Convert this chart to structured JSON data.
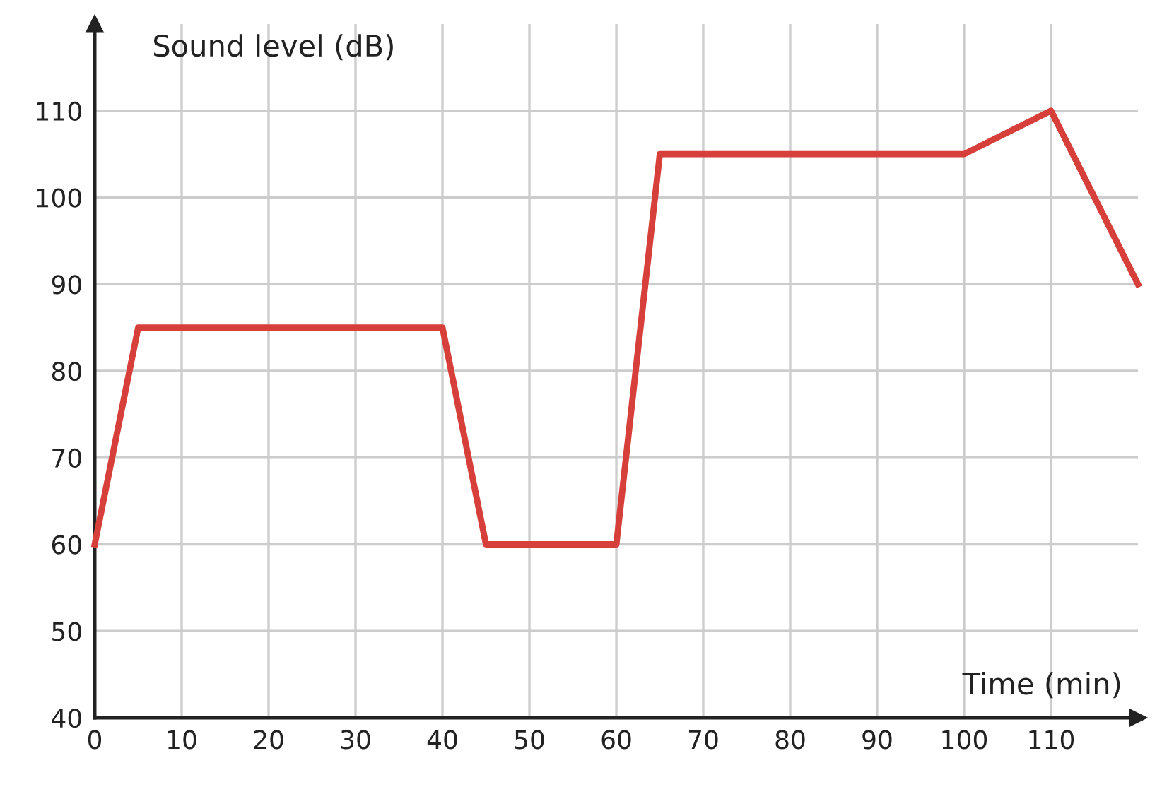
{
  "chart_data": {
    "type": "line",
    "xlabel": "Time (min)",
    "ylabel": "Sound level (dB)",
    "x": [
      0,
      5,
      40,
      45,
      60,
      65,
      100,
      110,
      120
    ],
    "series": [
      {
        "color": "#d63f3a",
        "values": [
          60,
          85,
          85,
          60,
          60,
          105,
          105,
          110,
          90
        ]
      }
    ],
    "xlim": [
      0,
      120
    ],
    "ylim": [
      40,
      120
    ],
    "xticks": [
      0,
      10,
      20,
      30,
      40,
      50,
      60,
      70,
      80,
      90,
      100,
      110
    ],
    "yticks": [
      40,
      50,
      60,
      70,
      80,
      90,
      100,
      110
    ],
    "grid": true,
    "marker": "none",
    "line_style": "solid"
  }
}
